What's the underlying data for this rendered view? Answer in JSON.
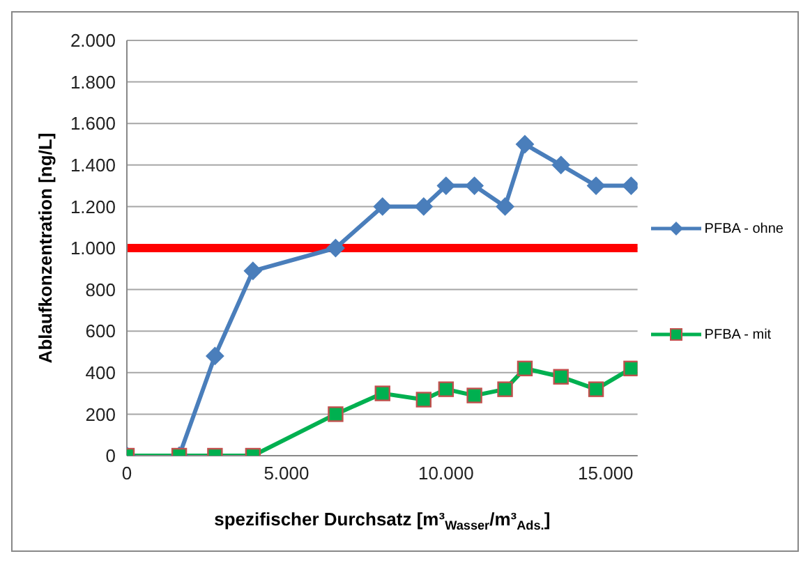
{
  "chart_data": {
    "type": "line",
    "xlabel": "spezifischer Durchsatz [m³$_{Wasser}$/m³$_{Ads.}$]",
    "ylabel": "Ablaufkonzentration  [ng/L]",
    "x": [
      0,
      1640,
      2760,
      3950,
      6540,
      8010,
      9300,
      10000,
      10890,
      11850,
      12470,
      13600,
      14700,
      15800
    ],
    "xlim": [
      0,
      16000
    ],
    "xticks": [
      0,
      {
        "value": 5000,
        "label": "5.000"
      },
      {
        "value": 10000,
        "label": "10.000"
      },
      {
        "value": 15000,
        "label": "15.000"
      }
    ],
    "ylim": [
      0,
      2000
    ],
    "yticks": [
      0,
      200,
      400,
      600,
      800,
      {
        "value": 1000,
        "label": "1.000"
      },
      {
        "value": 1200,
        "label": "1.200"
      },
      {
        "value": 1400,
        "label": "1.400"
      },
      {
        "value": 1600,
        "label": "1.600"
      },
      {
        "value": 1800,
        "label": "1.800"
      },
      {
        "value": 2000,
        "label": "2.000"
      }
    ],
    "grid": "y",
    "legend": "right",
    "series": [
      {
        "name": "PFBA - ohne",
        "color": "#4a7ebb",
        "marker": "diamond",
        "values": [
          0,
          0,
          480,
          890,
          1000,
          1200,
          1200,
          1300,
          1300,
          1200,
          1500,
          1400,
          1300,
          1300
        ]
      },
      {
        "name": "PFBA - mit",
        "color": "#00b050",
        "marker": "square",
        "values": [
          0,
          0,
          0,
          0,
          200,
          300,
          270,
          320,
          290,
          320,
          420,
          380,
          320,
          420
        ]
      }
    ],
    "ref_lines": [
      {
        "axis": "y",
        "value": 1000,
        "color": "#ff0000"
      }
    ]
  }
}
